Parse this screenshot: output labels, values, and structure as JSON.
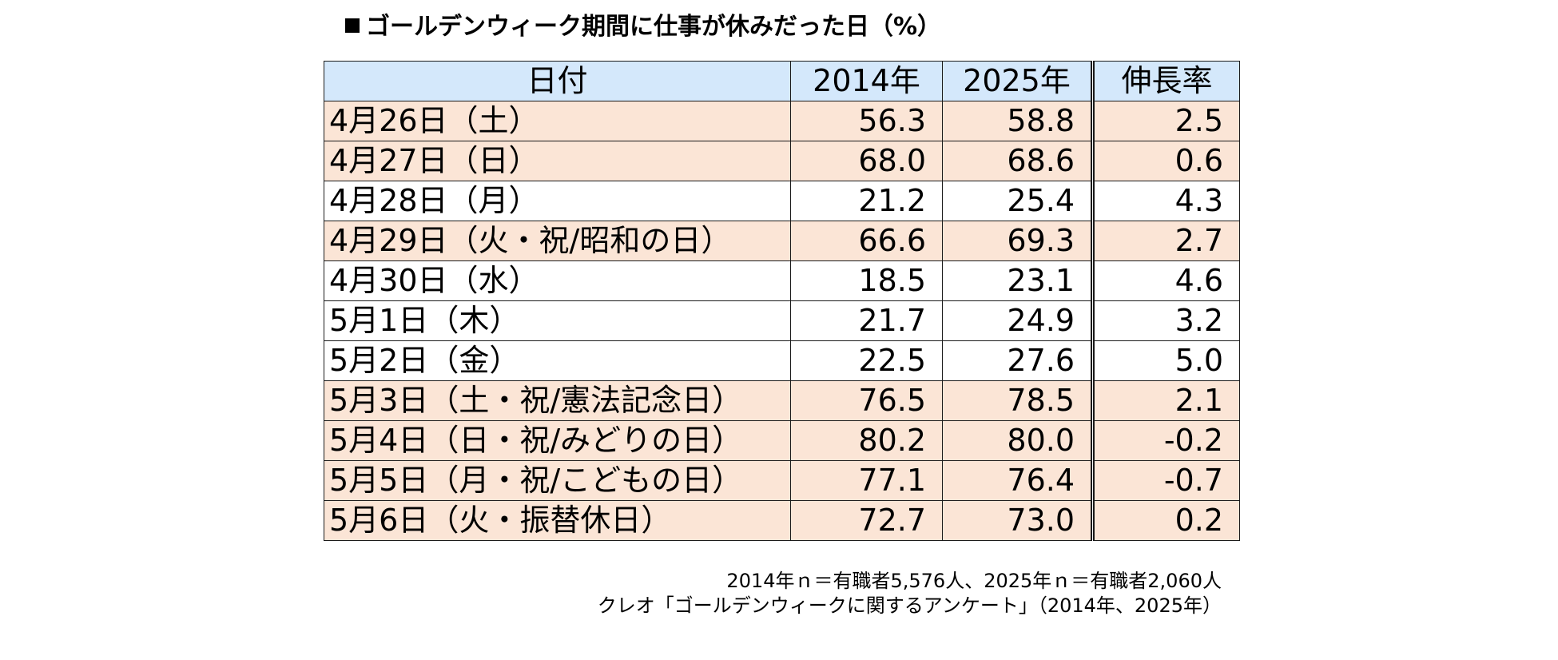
{
  "chart_data": {
    "type": "table",
    "title": "ゴールデンウィーク期間に仕事が休みだった日（%）",
    "columns": [
      "日付",
      "2014年",
      "2025年",
      "伸長率"
    ],
    "rows": [
      {
        "date": "4月26日（土）",
        "v2014": "56.3",
        "v2025": "58.8",
        "growth": "2.5",
        "highlight": true
      },
      {
        "date": "4月27日（日）",
        "v2014": "68.0",
        "v2025": "68.6",
        "growth": "0.6",
        "highlight": true
      },
      {
        "date": "4月28日（月）",
        "v2014": "21.2",
        "v2025": "25.4",
        "growth": "4.3",
        "highlight": false
      },
      {
        "date": "4月29日（火・祝/昭和の日）",
        "v2014": "66.6",
        "v2025": "69.3",
        "growth": "2.7",
        "highlight": true
      },
      {
        "date": "4月30日（水）",
        "v2014": "18.5",
        "v2025": "23.1",
        "growth": "4.6",
        "highlight": false
      },
      {
        "date": "5月1日（木）",
        "v2014": "21.7",
        "v2025": "24.9",
        "growth": "3.2",
        "highlight": false
      },
      {
        "date": "5月2日（金）",
        "v2014": "22.5",
        "v2025": "27.6",
        "growth": "5.0",
        "highlight": false
      },
      {
        "date": "5月3日（土・祝/憲法記念日）",
        "v2014": "76.5",
        "v2025": "78.5",
        "growth": "2.1",
        "highlight": true
      },
      {
        "date": "5月4日（日・祝/みどりの日）",
        "v2014": "80.2",
        "v2025": "80.0",
        "growth": "-0.2",
        "highlight": true
      },
      {
        "date": "5月5日（月・祝/こどもの日）",
        "v2014": "77.1",
        "v2025": "76.4",
        "growth": "-0.7",
        "highlight": true
      },
      {
        "date": "5月6日（火・振替休日）",
        "v2014": "72.7",
        "v2025": "73.0",
        "growth": "0.2",
        "highlight": true
      }
    ],
    "notes": [
      "2014年ｎ＝有職者5,576人、2025年ｎ＝有職者2,060人",
      "クレオ「ゴールデンウィークに関するアンケート」（2014年、2025年）"
    ]
  },
  "colors": {
    "header_bg": "#d4e8fb",
    "highlight_bg": "#fbe5d6",
    "plain_bg": "#ffffff"
  }
}
